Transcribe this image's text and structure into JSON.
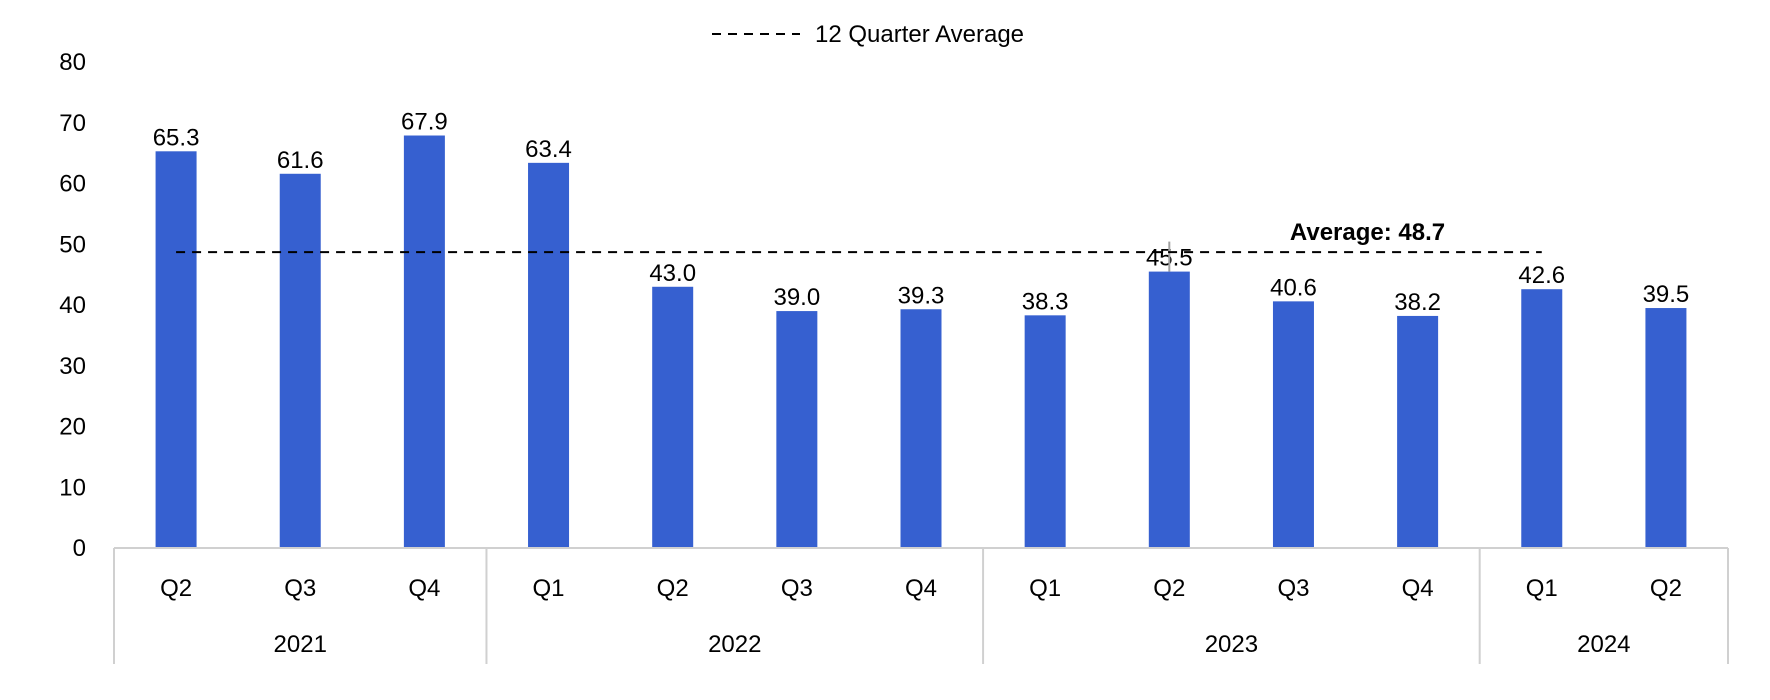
{
  "chart_data": {
    "type": "bar",
    "quarters": [
      "Q2",
      "Q3",
      "Q4",
      "Q1",
      "Q2",
      "Q3",
      "Q4",
      "Q1",
      "Q2",
      "Q3",
      "Q4",
      "Q1",
      "Q2"
    ],
    "years": [
      {
        "label": "2021",
        "count": 3
      },
      {
        "label": "2022",
        "count": 4
      },
      {
        "label": "2023",
        "count": 4
      },
      {
        "label": "2024",
        "count": 2
      }
    ],
    "values": [
      65.3,
      61.6,
      67.9,
      63.4,
      43.0,
      39.0,
      39.3,
      38.3,
      45.5,
      40.6,
      38.2,
      42.6,
      39.5
    ],
    "value_labels": [
      "65.3",
      "61.6",
      "67.9",
      "63.4",
      "43.0",
      "39.0",
      "39.3",
      "38.3",
      "45.5",
      "40.6",
      "38.2",
      "42.6",
      "39.5"
    ],
    "y_ticks": [
      "0",
      "10",
      "20",
      "30",
      "40",
      "50",
      "60",
      "70",
      "80"
    ],
    "ylim": [
      0,
      80
    ],
    "average": 48.7,
    "average_label": "Average: 48.7",
    "legend": {
      "label": "12 Quarter Average",
      "placement": "top-center"
    },
    "bar_color": "#3660d0",
    "grid": false
  }
}
